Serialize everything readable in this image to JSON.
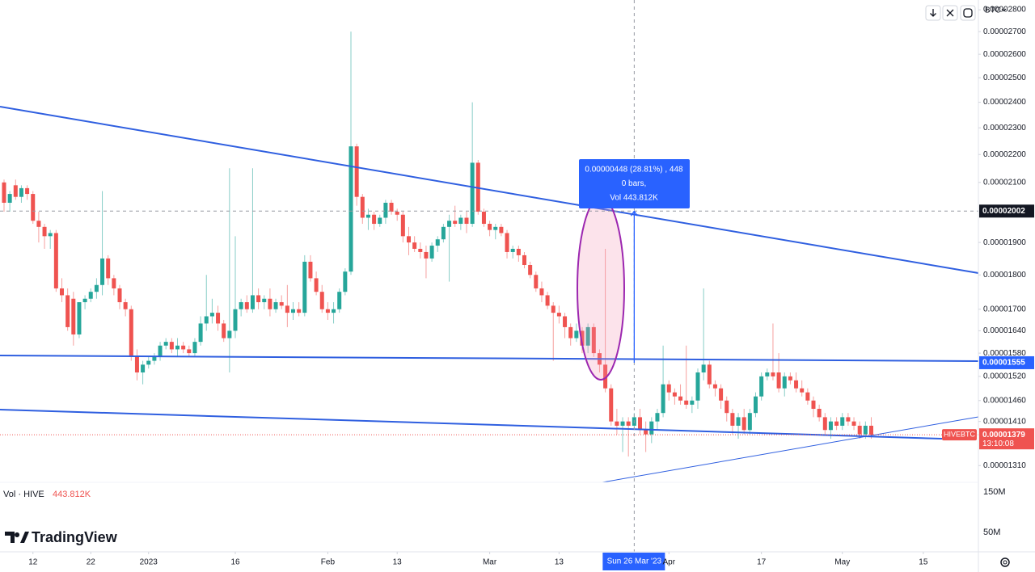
{
  "chart_data": {
    "type": "candlestick",
    "symbol": "HIVEBTC",
    "currency": "BTC",
    "log_scale": true,
    "grid": false,
    "up_color": "#26a69a",
    "down_color": "#ef5350",
    "ylim": [
      1.274e-05,
      2.846e-05
    ],
    "yticks": [
      {
        "value": 2.8e-05,
        "label": "0.00002800"
      },
      {
        "value": 2.7e-05,
        "label": "0.00002700"
      },
      {
        "value": 2.6e-05,
        "label": "0.00002600"
      },
      {
        "value": 2.5e-05,
        "label": "0.00002500"
      },
      {
        "value": 2.4e-05,
        "label": "0.00002400"
      },
      {
        "value": 2.3e-05,
        "label": "0.00002300"
      },
      {
        "value": 2.2e-05,
        "label": "0.00002200"
      },
      {
        "value": 2.1e-05,
        "label": "0.00002100"
      },
      {
        "value": 1.9e-05,
        "label": "0.00001900"
      },
      {
        "value": 1.8e-05,
        "label": "0.00001800"
      },
      {
        "value": 1.7e-05,
        "label": "0.00001700"
      },
      {
        "value": 1.64e-05,
        "label": "0.00001640"
      },
      {
        "value": 1.58e-05,
        "label": "0.00001580"
      },
      {
        "value": 1.52e-05,
        "label": "0.00001520"
      },
      {
        "value": 1.46e-05,
        "label": "0.00001460"
      },
      {
        "value": 1.41e-05,
        "label": "0.00001410"
      },
      {
        "value": 1.31e-05,
        "label": "0.00001310"
      }
    ],
    "xticks": [
      {
        "value": "2022-12-12",
        "label": "12"
      },
      {
        "value": "2022-12-22",
        "label": "22"
      },
      {
        "value": "2023-01-01",
        "label": "2023"
      },
      {
        "value": "2023-01-16",
        "label": "16"
      },
      {
        "value": "2023-02-01",
        "label": "Feb"
      },
      {
        "value": "2023-02-13",
        "label": "13"
      },
      {
        "value": "2023-03-01",
        "label": "Mar"
      },
      {
        "value": "2023-03-13",
        "label": "13"
      },
      {
        "value": "2023-04-01",
        "label": "Apr"
      },
      {
        "value": "2023-04-17",
        "label": "17"
      },
      {
        "value": "2023-05-01",
        "label": "May"
      },
      {
        "value": "2023-05-15",
        "label": "15"
      }
    ],
    "x": [
      "2022-12-07",
      "2022-12-08",
      "2022-12-09",
      "2022-12-10",
      "2022-12-11",
      "2022-12-12",
      "2022-12-13",
      "2022-12-14",
      "2022-12-15",
      "2022-12-16",
      "2022-12-17",
      "2022-12-18",
      "2022-12-19",
      "2022-12-20",
      "2022-12-21",
      "2022-12-22",
      "2022-12-23",
      "2022-12-24",
      "2022-12-25",
      "2022-12-26",
      "2022-12-27",
      "2022-12-28",
      "2022-12-29",
      "2022-12-30",
      "2022-12-31",
      "2023-01-01",
      "2023-01-02",
      "2023-01-03",
      "2023-01-04",
      "2023-01-05",
      "2023-01-06",
      "2023-01-07",
      "2023-01-08",
      "2023-01-09",
      "2023-01-10",
      "2023-01-11",
      "2023-01-12",
      "2023-01-13",
      "2023-01-14",
      "2023-01-15",
      "2023-01-16",
      "2023-01-17",
      "2023-01-18",
      "2023-01-19",
      "2023-01-20",
      "2023-01-21",
      "2023-01-22",
      "2023-01-23",
      "2023-01-24",
      "2023-01-25",
      "2023-01-26",
      "2023-01-27",
      "2023-01-28",
      "2023-01-29",
      "2023-01-30",
      "2023-01-31",
      "2023-02-01",
      "2023-02-02",
      "2023-02-03",
      "2023-02-04",
      "2023-02-05",
      "2023-02-06",
      "2023-02-07",
      "2023-02-08",
      "2023-02-09",
      "2023-02-10",
      "2023-02-11",
      "2023-02-12",
      "2023-02-13",
      "2023-02-14",
      "2023-02-15",
      "2023-02-16",
      "2023-02-17",
      "2023-02-18",
      "2023-02-19",
      "2023-02-20",
      "2023-02-21",
      "2023-02-22",
      "2023-02-23",
      "2023-02-24",
      "2023-02-25",
      "2023-02-26",
      "2023-02-27",
      "2023-02-28",
      "2023-03-01",
      "2023-03-02",
      "2023-03-03",
      "2023-03-04",
      "2023-03-05",
      "2023-03-06",
      "2023-03-07",
      "2023-03-08",
      "2023-03-09",
      "2023-03-10",
      "2023-03-11",
      "2023-03-12",
      "2023-03-13",
      "2023-03-14",
      "2023-03-15",
      "2023-03-16",
      "2023-03-17",
      "2023-03-18",
      "2023-03-19",
      "2023-03-20",
      "2023-03-21",
      "2023-03-22",
      "2023-03-23",
      "2023-03-24",
      "2023-03-25",
      "2023-03-26",
      "2023-03-27",
      "2023-03-28",
      "2023-03-29",
      "2023-03-30",
      "2023-03-31",
      "2023-04-01",
      "2023-04-02",
      "2023-04-03",
      "2023-04-04",
      "2023-04-05",
      "2023-04-06",
      "2023-04-07",
      "2023-04-08",
      "2023-04-09",
      "2023-04-10",
      "2023-04-11",
      "2023-04-12",
      "2023-04-13",
      "2023-04-14",
      "2023-04-15",
      "2023-04-16",
      "2023-04-17",
      "2023-04-18",
      "2023-04-19",
      "2023-04-20",
      "2023-04-21",
      "2023-04-22",
      "2023-04-23",
      "2023-04-24",
      "2023-04-25",
      "2023-04-26",
      "2023-04-27",
      "2023-04-28",
      "2023-04-29",
      "2023-04-30",
      "2023-05-01",
      "2023-05-02",
      "2023-05-03",
      "2023-05-04",
      "2023-05-05",
      "2023-05-06"
    ],
    "open": [
      2.1e-05,
      2.03e-05,
      2.09e-05,
      2.05e-05,
      2.08e-05,
      2.06e-05,
      1.97e-05,
      1.95e-05,
      1.92e-05,
      1.93e-05,
      1.76e-05,
      1.74e-05,
      1.73e-05,
      1.63e-05,
      1.72e-05,
      1.73e-05,
      1.75e-05,
      1.77e-05,
      1.85e-05,
      1.79e-05,
      1.76e-05,
      1.72e-05,
      1.7e-05,
      1.57e-05,
      1.53e-05,
      1.55e-05,
      1.56e-05,
      1.57e-05,
      1.6e-05,
      1.61e-05,
      1.59e-05,
      1.6e-05,
      1.59e-05,
      1.58e-05,
      1.61e-05,
      1.66e-05,
      1.68e-05,
      1.69e-05,
      1.66e-05,
      1.62e-05,
      1.64e-05,
      1.7e-05,
      1.72e-05,
      1.7e-05,
      1.74e-05,
      1.72e-05,
      1.73e-05,
      1.7e-05,
      1.72e-05,
      1.71e-05,
      1.69e-05,
      1.7e-05,
      1.69e-05,
      1.84e-05,
      1.79e-05,
      1.75e-05,
      1.7e-05,
      1.69e-05,
      1.7e-05,
      1.75e-05,
      1.81e-05,
      2.23e-05,
      2.05e-05,
      1.98e-05,
      1.99e-05,
      1.96e-05,
      1.98e-05,
      2.03e-05,
      2e-05,
      1.99e-05,
      1.92e-05,
      1.9e-05,
      1.88e-05,
      1.87e-05,
      1.85e-05,
      1.89e-05,
      1.91e-05,
      1.95e-05,
      1.97e-05,
      1.96e-05,
      1.98e-05,
      1.96e-05,
      2.17e-05,
      2e-05,
      1.96e-05,
      1.94e-05,
      1.95e-05,
      1.93e-05,
      1.87e-05,
      1.88e-05,
      1.86e-05,
      1.83e-05,
      1.8e-05,
      1.76e-05,
      1.74e-05,
      1.71e-05,
      1.69e-05,
      1.68e-05,
      1.65e-05,
      1.62e-05,
      1.64e-05,
      1.6e-05,
      1.65e-05,
      1.58e-05,
      1.55e-05,
      1.49e-05,
      1.41e-05,
      1.4e-05,
      1.41e-05,
      1.4e-05,
      1.42e-05,
      1.39e-05,
      1.38e-05,
      1.41e-05,
      1.43e-05,
      1.5e-05,
      1.48e-05,
      1.47e-05,
      1.46e-05,
      1.45e-05,
      1.46e-05,
      1.53e-05,
      1.55e-05,
      1.5e-05,
      1.49e-05,
      1.46e-05,
      1.43e-05,
      1.4e-05,
      1.42e-05,
      1.39e-05,
      1.43e-05,
      1.47e-05,
      1.52e-05,
      1.53e-05,
      1.53e-05,
      1.49e-05,
      1.52e-05,
      1.51e-05,
      1.49e-05,
      1.48e-05,
      1.46e-05,
      1.44e-05,
      1.42e-05,
      1.39e-05,
      1.41e-05,
      1.4e-05,
      1.42e-05,
      1.41e-05,
      1.4e-05,
      1.38e-05,
      1.4e-05
    ],
    "high": [
      2.11e-05,
      2.07e-05,
      2.11e-05,
      2.09e-05,
      2.09e-05,
      2.07e-05,
      2e-05,
      1.96e-05,
      1.94e-05,
      1.94e-05,
      1.79e-05,
      1.76e-05,
      1.75e-05,
      1.72e-05,
      1.74e-05,
      1.76e-05,
      1.79e-05,
      2.07e-05,
      1.86e-05,
      1.8e-05,
      1.77e-05,
      1.73e-05,
      1.71e-05,
      1.59e-05,
      1.56e-05,
      1.57e-05,
      1.58e-05,
      1.61e-05,
      1.62e-05,
      1.62e-05,
      1.62e-05,
      1.61e-05,
      1.6e-05,
      1.62e-05,
      1.68e-05,
      1.8e-05,
      1.73e-05,
      1.71e-05,
      1.67e-05,
      2.15e-05,
      1.92e-05,
      1.73e-05,
      1.74e-05,
      2.15e-05,
      1.76e-05,
      1.74e-05,
      1.76e-05,
      1.73e-05,
      1.74e-05,
      1.77e-05,
      1.72e-05,
      1.72e-05,
      1.86e-05,
      1.86e-05,
      1.81e-05,
      1.77e-05,
      1.72e-05,
      1.72e-05,
      1.76e-05,
      1.82e-05,
      2.7e-05,
      2.24e-05,
      2.06e-05,
      2.01e-05,
      2e-05,
      1.99e-05,
      2.04e-05,
      2.04e-05,
      2.01e-05,
      2e-05,
      1.95e-05,
      1.92e-05,
      1.9e-05,
      1.89e-05,
      1.9e-05,
      1.92e-05,
      1.96e-05,
      1.99e-05,
      2.02e-05,
      1.99e-05,
      2e-05,
      2.4e-05,
      2.18e-05,
      2.01e-05,
      1.97e-05,
      1.96e-05,
      1.96e-05,
      1.94e-05,
      1.89e-05,
      1.89e-05,
      1.87e-05,
      1.84e-05,
      1.81e-05,
      1.78e-05,
      1.75e-05,
      1.72e-05,
      1.71e-05,
      1.69e-05,
      1.66e-05,
      1.66e-05,
      1.65e-05,
      1.66e-05,
      1.66e-05,
      1.59e-05,
      1.88e-05,
      1.5e-05,
      1.44e-05,
      1.42e-05,
      1.42e-05,
      1.43e-05,
      1.44e-05,
      1.41e-05,
      1.42e-05,
      1.44e-05,
      1.6e-05,
      1.51e-05,
      1.49e-05,
      1.5e-05,
      1.6e-05,
      1.47e-05,
      1.54e-05,
      1.76e-05,
      1.56e-05,
      1.51e-05,
      1.5e-05,
      1.47e-05,
      1.44e-05,
      1.43e-05,
      1.44e-05,
      1.44e-05,
      1.48e-05,
      1.53e-05,
      1.54e-05,
      1.66e-05,
      1.58e-05,
      1.53e-05,
      1.53e-05,
      1.53e-05,
      1.51e-05,
      1.49e-05,
      1.47e-05,
      1.45e-05,
      1.43e-05,
      1.42e-05,
      1.42e-05,
      1.43e-05,
      1.43e-05,
      1.42e-05,
      1.41e-05,
      1.41e-05,
      1.42e-05
    ],
    "low": [
      2e-05,
      2e-05,
      2.04e-05,
      2.03e-05,
      2.04e-05,
      1.96e-05,
      1.9e-05,
      1.88e-05,
      1.88e-05,
      1.75e-05,
      1.72e-05,
      1.64e-05,
      1.6e-05,
      1.62e-05,
      1.7e-05,
      1.72e-05,
      1.73e-05,
      1.74e-05,
      1.77e-05,
      1.74e-05,
      1.7e-05,
      1.68e-05,
      1.56e-05,
      1.51e-05,
      1.5e-05,
      1.54e-05,
      1.55e-05,
      1.56e-05,
      1.59e-05,
      1.58e-05,
      1.57e-05,
      1.58e-05,
      1.57e-05,
      1.57e-05,
      1.6e-05,
      1.64e-05,
      1.66e-05,
      1.64e-05,
      1.61e-05,
      1.53e-05,
      1.62e-05,
      1.68e-05,
      1.69e-05,
      1.69e-05,
      1.7e-05,
      1.7e-05,
      1.68e-05,
      1.69e-05,
      1.7e-05,
      1.65e-05,
      1.67e-05,
      1.68e-05,
      1.68e-05,
      1.78e-05,
      1.74e-05,
      1.69e-05,
      1.67e-05,
      1.66e-05,
      1.69e-05,
      1.74e-05,
      1.8e-05,
      2.02e-05,
      1.96e-05,
      1.94e-05,
      1.94e-05,
      1.95e-05,
      1.96e-05,
      1.99e-05,
      1.97e-05,
      1.9e-05,
      1.86e-05,
      1.87e-05,
      1.85e-05,
      1.79e-05,
      1.84e-05,
      1.87e-05,
      1.9e-05,
      1.78e-05,
      1.95e-05,
      1.94e-05,
      1.93e-05,
      1.95e-05,
      1.99e-05,
      1.95e-05,
      1.92e-05,
      1.91e-05,
      1.92e-05,
      1.85e-05,
      1.85e-05,
      1.84e-05,
      1.82e-05,
      1.79e-05,
      1.75e-05,
      1.72e-05,
      1.7e-05,
      1.56e-05,
      1.66e-05,
      1.62e-05,
      1.6e-05,
      1.61e-05,
      1.58e-05,
      1.58e-05,
      1.57e-05,
      1.53e-05,
      1.48e-05,
      1.4e-05,
      1.38e-05,
      1.34e-05,
      1.33e-05,
      1.39e-05,
      1.38e-05,
      1.34e-05,
      1.36e-05,
      1.39e-05,
      1.42e-05,
      1.46e-05,
      1.45e-05,
      1.45e-05,
      1.44e-05,
      1.43e-05,
      1.44e-05,
      1.51e-05,
      1.49e-05,
      1.47e-05,
      1.44e-05,
      1.41e-05,
      1.38e-05,
      1.37e-05,
      1.38e-05,
      1.38e-05,
      1.42e-05,
      1.46e-05,
      1.51e-05,
      1.51e-05,
      1.48e-05,
      1.47e-05,
      1.5e-05,
      1.48e-05,
      1.47e-05,
      1.45e-05,
      1.42e-05,
      1.41e-05,
      1.38e-05,
      1.37e-05,
      1.39e-05,
      1.39e-05,
      1.4e-05,
      1.39e-05,
      1.37e-05,
      1.37e-05,
      1.37e-05
    ],
    "close": [
      2.03e-05,
      2.06e-05,
      2.05e-05,
      2.08e-05,
      2.06e-05,
      1.97e-05,
      1.95e-05,
      1.92e-05,
      1.93e-05,
      1.76e-05,
      1.74e-05,
      1.65e-05,
      1.63e-05,
      1.72e-05,
      1.73e-05,
      1.75e-05,
      1.77e-05,
      1.85e-05,
      1.79e-05,
      1.76e-05,
      1.72e-05,
      1.7e-05,
      1.57e-05,
      1.53e-05,
      1.55e-05,
      1.56e-05,
      1.57e-05,
      1.6e-05,
      1.61e-05,
      1.59e-05,
      1.6e-05,
      1.59e-05,
      1.58e-05,
      1.61e-05,
      1.66e-05,
      1.68e-05,
      1.69e-05,
      1.66e-05,
      1.62e-05,
      1.64e-05,
      1.7e-05,
      1.72e-05,
      1.7e-05,
      1.74e-05,
      1.72e-05,
      1.73e-05,
      1.7e-05,
      1.72e-05,
      1.71e-05,
      1.69e-05,
      1.7e-05,
      1.69e-05,
      1.84e-05,
      1.79e-05,
      1.75e-05,
      1.7e-05,
      1.69e-05,
      1.7e-05,
      1.75e-05,
      1.81e-05,
      2.23e-05,
      2.05e-05,
      1.98e-05,
      1.99e-05,
      1.96e-05,
      1.98e-05,
      2.03e-05,
      2e-05,
      1.99e-05,
      1.92e-05,
      1.9e-05,
      1.88e-05,
      1.87e-05,
      1.85e-05,
      1.89e-05,
      1.91e-05,
      1.95e-05,
      1.97e-05,
      1.96e-05,
      1.98e-05,
      1.96e-05,
      2.17e-05,
      2e-05,
      1.96e-05,
      1.94e-05,
      1.95e-05,
      1.93e-05,
      1.87e-05,
      1.88e-05,
      1.86e-05,
      1.83e-05,
      1.8e-05,
      1.76e-05,
      1.74e-05,
      1.71e-05,
      1.69e-05,
      1.68e-05,
      1.65e-05,
      1.62e-05,
      1.64e-05,
      1.6e-05,
      1.65e-05,
      1.58e-05,
      1.55e-05,
      1.49e-05,
      1.41e-05,
      1.4e-05,
      1.41e-05,
      1.4e-05,
      1.42e-05,
      1.39e-05,
      1.38e-05,
      1.41e-05,
      1.43e-05,
      1.5e-05,
      1.48e-05,
      1.47e-05,
      1.46e-05,
      1.45e-05,
      1.46e-05,
      1.53e-05,
      1.55e-05,
      1.5e-05,
      1.49e-05,
      1.46e-05,
      1.43e-05,
      1.4e-05,
      1.42e-05,
      1.39e-05,
      1.43e-05,
      1.47e-05,
      1.52e-05,
      1.53e-05,
      1.52e-05,
      1.49e-05,
      1.52e-05,
      1.51e-05,
      1.49e-05,
      1.48e-05,
      1.46e-05,
      1.44e-05,
      1.42e-05,
      1.39e-05,
      1.41e-05,
      1.4e-05,
      1.42e-05,
      1.41e-05,
      1.4e-05,
      1.38e-05,
      1.4e-05,
      1.379e-05
    ],
    "countdown": "13:10:08",
    "line_price": 1.555e-05,
    "crosshair": {
      "price": 2.002e-05,
      "date": "2023-03-26",
      "date_label": "Sun 26 Mar '23"
    },
    "measure": [
      "0.00000448 (28.81%) , 448",
      "0 bars,",
      "Vol 443.812K"
    ],
    "volume_legend": {
      "label": "Vol · HIVE",
      "value": "443.812K"
    },
    "volume_ticks": [
      "150M",
      "50M"
    ],
    "watermark": "TradingView"
  }
}
